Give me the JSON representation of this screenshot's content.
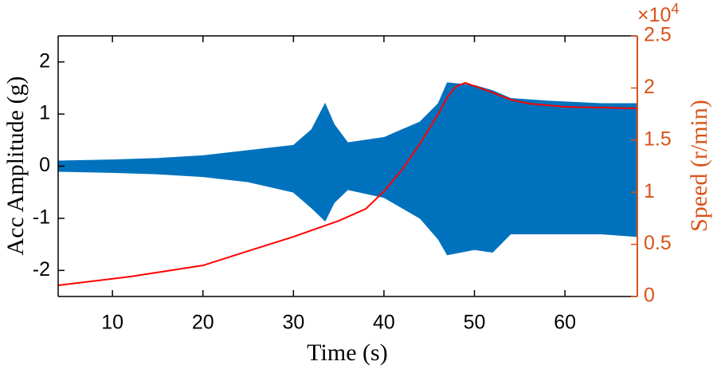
{
  "chart_data": {
    "type": "line",
    "xlabel": "Time (s)",
    "ylabel": "Acc Amplitude (g)",
    "y2label": "Speed (r/min)",
    "y2_multiplier": {
      "base": "×10",
      "power": "4"
    },
    "xlim": [
      4,
      68
    ],
    "xticks": [
      10,
      20,
      30,
      40,
      50,
      60
    ],
    "ylim": [
      -2.5,
      2.5
    ],
    "yticks": [
      -2,
      -1,
      0,
      1,
      2
    ],
    "y2lim": [
      0,
      25000
    ],
    "y2ticks": [
      {
        "value": 0,
        "label": "0"
      },
      {
        "value": 5000,
        "label": "0.5"
      },
      {
        "value": 10000,
        "label": "1"
      },
      {
        "value": 15000,
        "label": "1.5"
      },
      {
        "value": 20000,
        "label": "2"
      },
      {
        "value": 25000,
        "label": "2.5"
      }
    ],
    "axis_color": "#000000",
    "y2_axis_color": "#d95319",
    "series": [
      {
        "kind": "band",
        "color": "#0072bd",
        "x": [
          4,
          10,
          15,
          20,
          25,
          30,
          32,
          33.5,
          34.5,
          36,
          40,
          44,
          46,
          47,
          50,
          52,
          54,
          58,
          64,
          68
        ],
        "upper": [
          0.1,
          0.12,
          0.15,
          0.2,
          0.3,
          0.4,
          0.7,
          1.2,
          0.8,
          0.45,
          0.55,
          0.85,
          1.2,
          1.6,
          1.55,
          1.45,
          1.3,
          1.25,
          1.2,
          1.2
        ],
        "lower": [
          -0.1,
          -0.12,
          -0.15,
          -0.2,
          -0.3,
          -0.5,
          -0.8,
          -1.05,
          -0.7,
          -0.45,
          -0.6,
          -1.0,
          -1.4,
          -1.7,
          -1.6,
          -1.65,
          -1.3,
          -1.3,
          -1.3,
          -1.35
        ]
      },
      {
        "kind": "line",
        "axis": "y2",
        "color": "#ff0000",
        "x": [
          4,
          12,
          20,
          25,
          30,
          35,
          38,
          40,
          42,
          44,
          46,
          47,
          48,
          49,
          50,
          52,
          54,
          56,
          60,
          64,
          68
        ],
        "values": [
          1070,
          1910,
          2980,
          4360,
          5730,
          7260,
          8410,
          10090,
          12160,
          14680,
          17510,
          19110,
          20180,
          20490,
          20180,
          19570,
          18880,
          18500,
          18200,
          18120,
          18040
        ]
      }
    ]
  }
}
